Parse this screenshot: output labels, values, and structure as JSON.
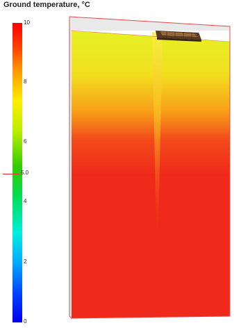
{
  "legend": {
    "title": "Ground temperature, °C",
    "ticks": [
      "10",
      "8",
      "6",
      "4",
      "2",
      "0"
    ],
    "marker_label": "5.0",
    "max_color": "#ff0000",
    "min_color": "#0000ee"
  },
  "colors": {
    "surface_hot": "#f02a1a",
    "surface_warm": "#f7c21a",
    "surface_cool": "#dde82a",
    "outline": "#e84848"
  }
}
